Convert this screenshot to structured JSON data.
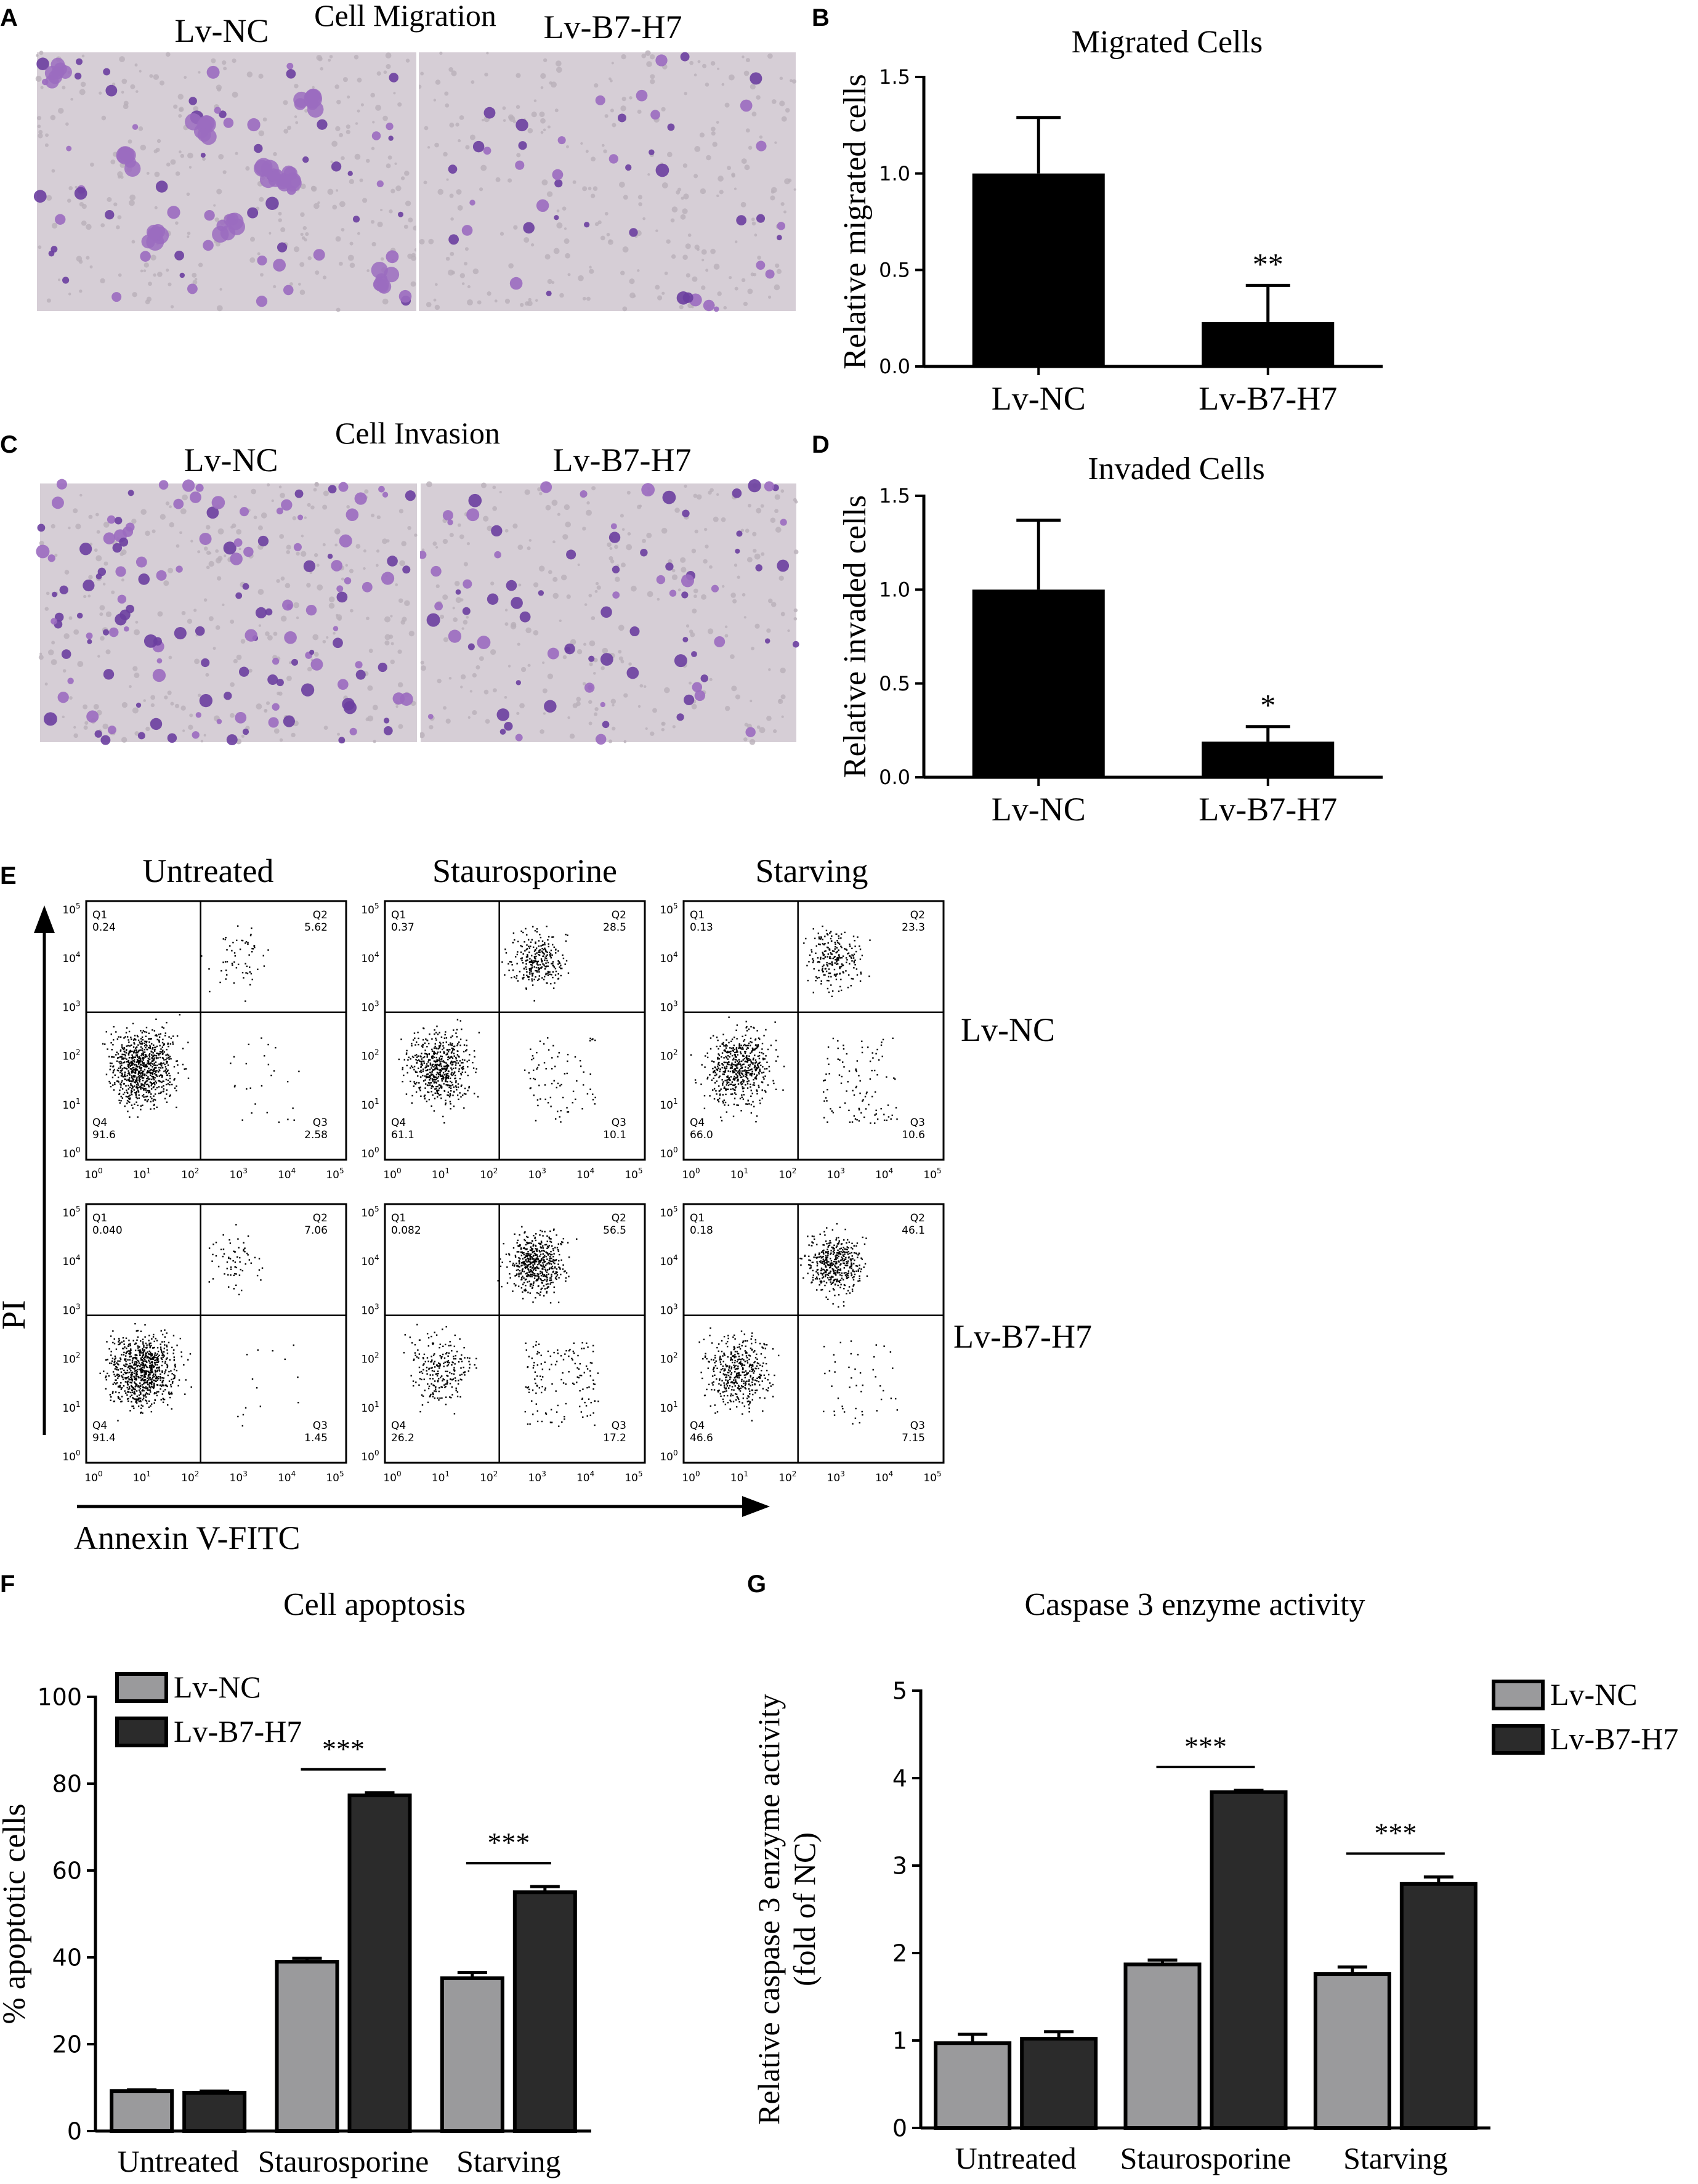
{
  "colors": {
    "nc": "#9a9a9c",
    "b7": "#2b2b2b",
    "bar": "#000000",
    "stain_dark": "#6b3fa0",
    "stain_light": "#9b6cc0",
    "background_micro": "#d6ced6"
  },
  "panel_letters": {
    "a": "A",
    "b": "B",
    "c": "C",
    "d": "D",
    "e": "E",
    "f": "F",
    "g": "G"
  },
  "panel_a": {
    "title": "Cell Migration",
    "left_label": "Lv-NC",
    "right_label": "Lv-B7-H7"
  },
  "panel_c": {
    "title": "Cell Invasion",
    "left_label": "Lv-NC",
    "right_label": "Lv-B7-H7"
  },
  "panel_e": {
    "columns": [
      "Untreated",
      "Staurosporine",
      "Starving"
    ],
    "rows": [
      "Lv-NC",
      "Lv-B7-H7"
    ],
    "ylabel": "PI",
    "xlabel": "Annexin V-FITC",
    "quadrant_names": [
      "Q1",
      "Q2",
      "Q3",
      "Q4"
    ],
    "plots": [
      {
        "q1": "0.24",
        "q2": "5.62",
        "q3": "2.58",
        "q4": "91.6"
      },
      {
        "q1": "0.37",
        "q2": "28.5",
        "q3": "10.1",
        "q4": "61.1"
      },
      {
        "q1": "0.13",
        "q2": "23.3",
        "q3": "10.6",
        "q4": "66.0"
      },
      {
        "q1": "0.040",
        "q2": "7.06",
        "q3": "1.45",
        "q4": "91.4"
      },
      {
        "q1": "0.082",
        "q2": "56.5",
        "q3": "17.2",
        "q4": "26.2"
      },
      {
        "q1": "0.18",
        "q2": "46.1",
        "q3": "7.15",
        "q4": "46.6"
      }
    ],
    "tick_base": "10",
    "tick_exponents": [
      "0",
      "1",
      "2",
      "3",
      "4",
      "5"
    ]
  },
  "chart_data": [
    {
      "id": "B",
      "type": "bar",
      "title": "Migrated Cells",
      "xlabel": "",
      "ylabel": "Relative migrated cells",
      "categories": [
        "Lv-NC",
        "Lv-B7-H7"
      ],
      "values": [
        1.0,
        0.23
      ],
      "errors": [
        0.29,
        0.19
      ],
      "significance": [
        "",
        "**"
      ],
      "ylim": [
        0,
        1.5
      ],
      "yticks": [
        "0.0",
        "0.5",
        "1.0",
        "1.5"
      ],
      "ytick_values": [
        0,
        0.5,
        1.0,
        1.5
      ]
    },
    {
      "id": "D",
      "type": "bar",
      "title": "Invaded Cells",
      "xlabel": "",
      "ylabel": "Relative invaded cells",
      "categories": [
        "Lv-NC",
        "Lv-B7-H7"
      ],
      "values": [
        1.0,
        0.19
      ],
      "errors": [
        0.37,
        0.08
      ],
      "significance": [
        "",
        "*"
      ],
      "ylim": [
        0,
        1.5
      ],
      "yticks": [
        "0.0",
        "0.5",
        "1.0",
        "1.5"
      ],
      "ytick_values": [
        0,
        0.5,
        1.0,
        1.5
      ]
    },
    {
      "id": "F",
      "type": "bar",
      "title": "Cell apoptosis",
      "xlabel": "",
      "ylabel": "% apoptotic cells",
      "categories": [
        "Untreated",
        "Staurosporine",
        "Starving"
      ],
      "series": [
        {
          "name": "Lv-NC",
          "values": [
            9.2,
            39.0,
            35.2
          ],
          "errors": [
            0.3,
            0.8,
            1.3
          ]
        },
        {
          "name": "Lv-B7-H7",
          "values": [
            8.8,
            77.3,
            55.0
          ],
          "errors": [
            0.4,
            0.6,
            1.3
          ]
        }
      ],
      "significance": [
        "",
        "***",
        "***"
      ],
      "ylim": [
        0,
        100
      ],
      "yticks": [
        "0",
        "20",
        "40",
        "60",
        "80",
        "100"
      ],
      "ytick_values": [
        0,
        20,
        40,
        60,
        80,
        100
      ],
      "legend": "top-left"
    },
    {
      "id": "G",
      "type": "bar",
      "title": "Caspase 3 enzyme activity",
      "xlabel": "",
      "ylabel": "Relative caspase 3 enzyme activity",
      "ylabel2": "(fold of NC)",
      "categories": [
        "Untreated",
        "Staurosporine",
        "Starving"
      ],
      "series": [
        {
          "name": "Lv-NC",
          "values": [
            0.97,
            1.87,
            1.76
          ],
          "errors": [
            0.1,
            0.05,
            0.08
          ]
        },
        {
          "name": "Lv-B7-H7",
          "values": [
            1.02,
            3.84,
            2.79
          ],
          "errors": [
            0.08,
            0.02,
            0.08
          ]
        }
      ],
      "significance": [
        "",
        "***",
        "***"
      ],
      "ylim": [
        0,
        5
      ],
      "yticks": [
        "0",
        "1",
        "2",
        "3",
        "4",
        "5"
      ],
      "ytick_values": [
        0,
        1,
        2,
        3,
        4,
        5
      ],
      "legend": "top-right"
    }
  ]
}
